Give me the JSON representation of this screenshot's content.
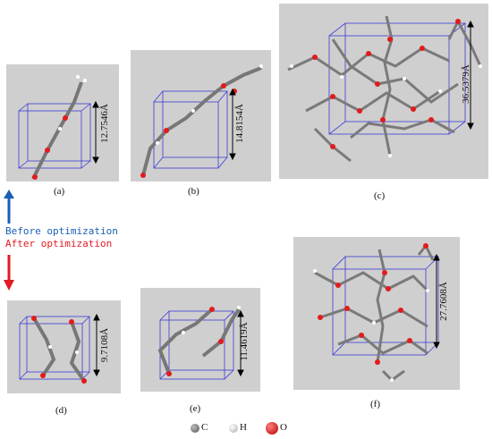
{
  "panels": [
    {
      "label": "(a)",
      "dimension": "12.7546Å"
    },
    {
      "label": "(b)",
      "dimension": "14.8154Å"
    },
    {
      "label": "(c)",
      "dimension": "36.5379Å"
    },
    {
      "label": "(d)",
      "dimension": "9.7108Å"
    },
    {
      "label": "(e)",
      "dimension": "11.4619Å"
    },
    {
      "label": "(f)",
      "dimension": "27.7608Å"
    }
  ],
  "annotations": {
    "before": "Before optimization",
    "after": "After optimization",
    "before_color": "#1a5fb4",
    "after_color": "#e01b24"
  },
  "legend": [
    {
      "symbol": "C",
      "color": "#6f6f6f"
    },
    {
      "symbol": "H",
      "color": "#eeeeee"
    },
    {
      "symbol": "O",
      "color": "#e21b1b"
    }
  ]
}
